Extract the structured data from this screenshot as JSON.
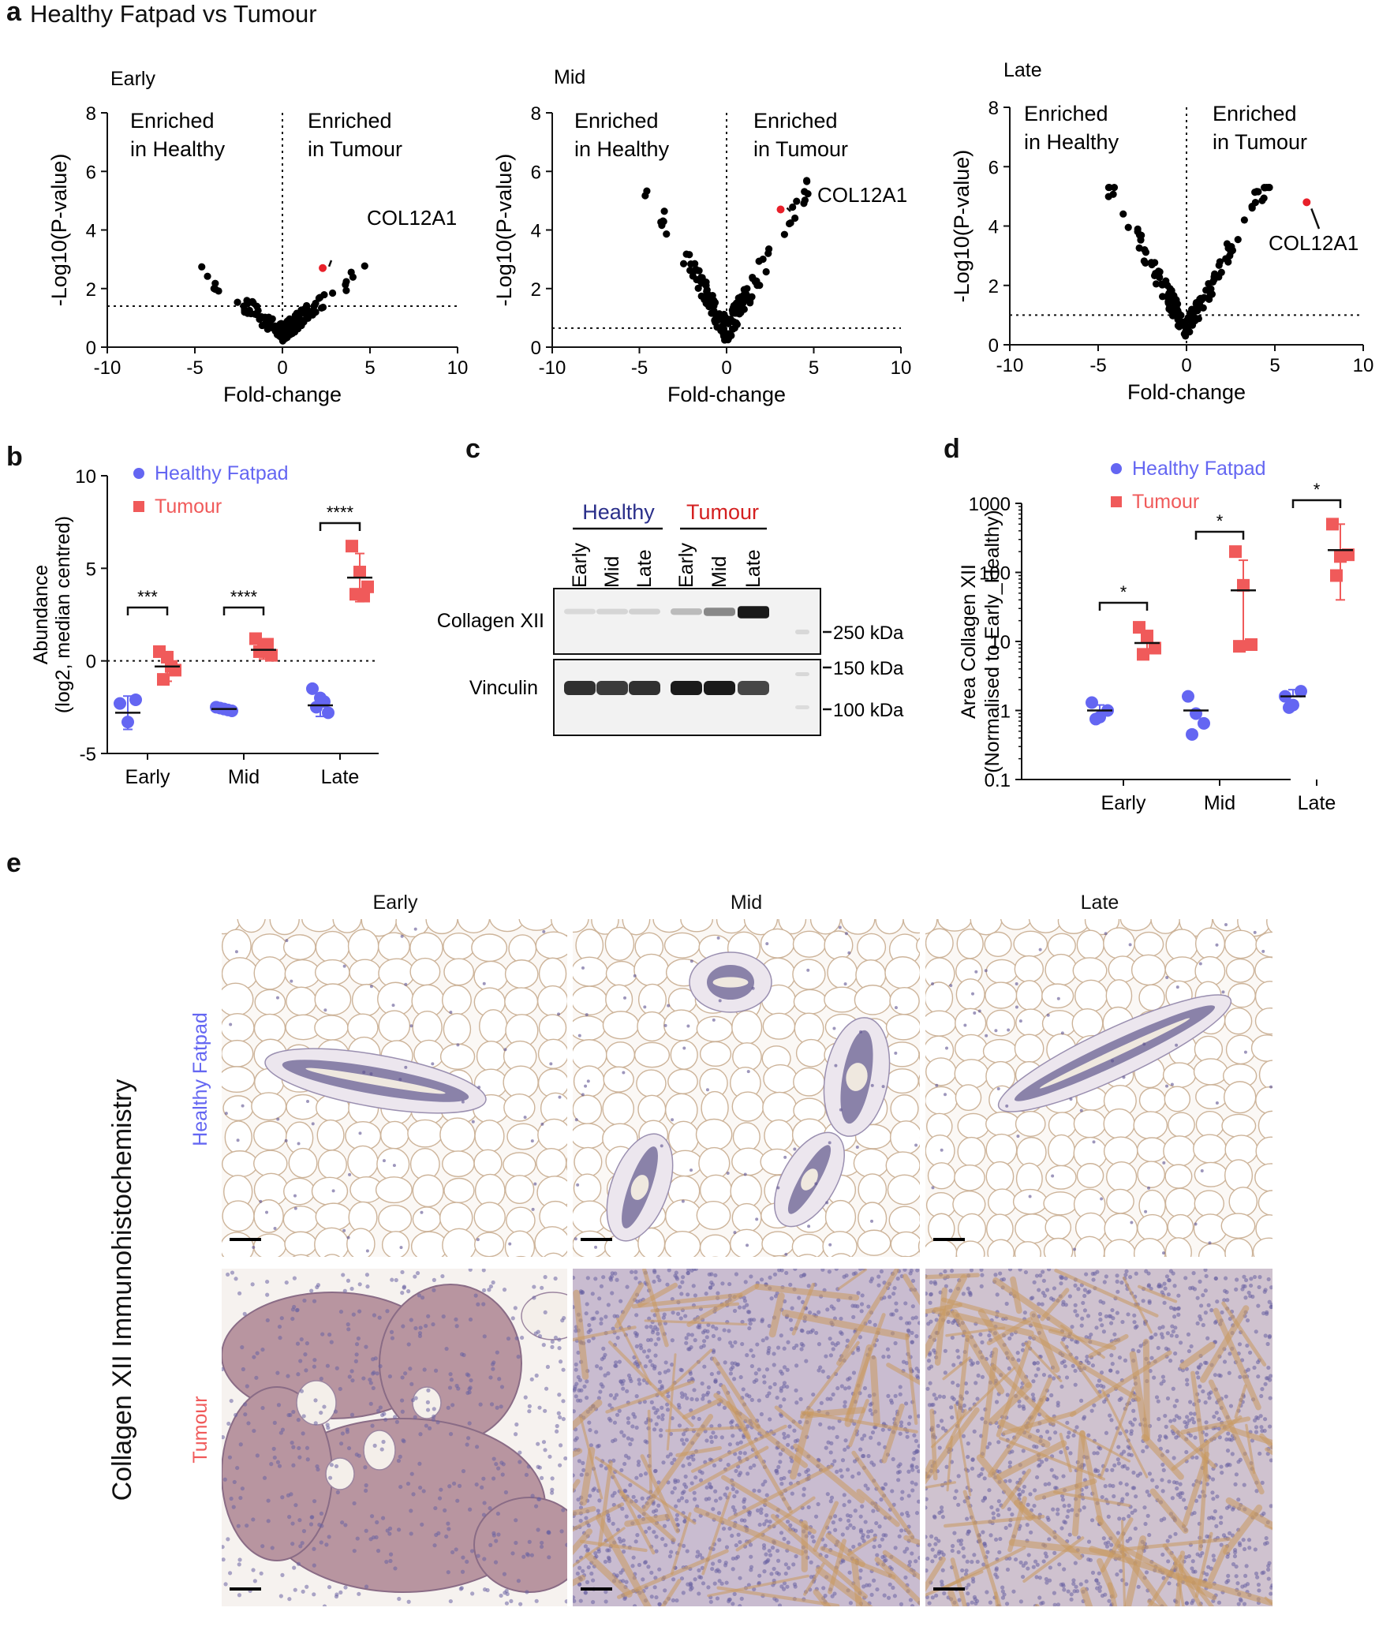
{
  "figure": {
    "panel_a_letter": "a",
    "panel_a_title": "Healthy Fatpad vs Tumour",
    "panel_b_letter": "b",
    "panel_c_letter": "c",
    "panel_d_letter": "d",
    "panel_e_letter": "e"
  },
  "colors": {
    "healthy": "#6466f2",
    "tumour": "#f05a5a",
    "highlight": "#e8202a",
    "healthy_label_c": "#2a2f8a",
    "tumour_label_c": "#d42020",
    "adipose_bg": "#fbf8f5",
    "tumour_tissue": "#c8a3a8",
    "stroma": "#c99a60"
  },
  "panel_a": {
    "ylabel": "-Log10(P-value)",
    "xlabel": "Fold-change",
    "left_annotation": [
      "Enriched",
      "in Healthy"
    ],
    "right_annotation": [
      "Enriched",
      "in Tumour"
    ],
    "highlight_gene": "COL12A1",
    "xlim": [
      -10,
      10
    ],
    "ylim": [
      0,
      8
    ],
    "xticks": [
      "-10",
      "-5",
      "0",
      "5",
      "10"
    ],
    "yticks": [
      "0",
      "2",
      "4",
      "6",
      "8"
    ],
    "plots": [
      {
        "title": "Early",
        "threshold": 1.4,
        "highlight": {
          "x": 2.3,
          "y": 2.7
        }
      },
      {
        "title": "Mid",
        "threshold": 0.65,
        "highlight": {
          "x": 3.1,
          "y": 4.7
        }
      },
      {
        "title": "Late",
        "threshold": 1.0,
        "highlight": {
          "x": 6.8,
          "y": 4.8
        }
      }
    ]
  },
  "panel_b": {
    "ylabel_line1": "Abundance",
    "ylabel_line2": "(log2, median centred)",
    "categories": [
      "Early",
      "Mid",
      "Late"
    ],
    "yticks": [
      "-5",
      "0",
      "5",
      "10"
    ],
    "ylim": [
      -5,
      10
    ],
    "legend": {
      "healthy": "Healthy Fatpad",
      "tumour": "Tumour"
    },
    "significance": [
      "***",
      "****",
      "****"
    ],
    "healthy": {
      "mean": [
        -2.8,
        -2.6,
        -2.4
      ],
      "sd": [
        0.9,
        0.15,
        0.6
      ],
      "points": [
        [
          -2.3,
          -3.3,
          -2.1
        ],
        [
          -2.5,
          -2.6,
          -2.7,
          -2.55,
          -2.65
        ],
        [
          -1.5,
          -2.0,
          -2.8,
          -2.5,
          -2.2
        ]
      ]
    },
    "tumour": {
      "mean": [
        -0.3,
        0.6,
        4.5
      ],
      "sd": [
        0.8,
        0.5,
        1.3
      ],
      "points": [
        [
          0.5,
          0.2,
          -0.5,
          -1.0,
          -0.3
        ],
        [
          1.2,
          0.7,
          0.3,
          0.5,
          0.9
        ],
        [
          6.2,
          4.8,
          4.0,
          3.6,
          3.5
        ]
      ]
    }
  },
  "panel_c": {
    "group_healthy": "Healthy",
    "group_tumour": "Tumour",
    "lanes": [
      "Early",
      "Mid",
      "Late",
      "Early",
      "Mid",
      "Late"
    ],
    "row1_label": "Collagen XII",
    "row2_label": "Vinculin",
    "marker_250": "250 kDa",
    "marker_150": "150 kDa",
    "marker_100": "100 kDa",
    "collagen_intensity": [
      0.08,
      0.1,
      0.12,
      0.22,
      0.45,
      0.95
    ],
    "vinculin_intensity": [
      0.85,
      0.8,
      0.85,
      0.95,
      0.95,
      0.75
    ]
  },
  "panel_d": {
    "ylabel_line1": "Area Collagen XII",
    "ylabel_line2": "(Normalised to Early_Healthy)",
    "categories": [
      "Early",
      "Mid",
      "Late"
    ],
    "yticks": [
      "0.1",
      "1",
      "10",
      "100",
      "1000"
    ],
    "ylim": [
      0.1,
      1000
    ],
    "scale": "log",
    "legend": {
      "healthy": "Healthy Fatpad",
      "tumour": "Tumour"
    },
    "significance": [
      "*",
      "*",
      "*"
    ],
    "healthy": {
      "mean": [
        1.0,
        1.0,
        1.6
      ],
      "sd_high": [
        1.2,
        1.0,
        2.0
      ],
      "points": [
        [
          1.3,
          0.8,
          1.0,
          0.75
        ],
        [
          1.6,
          0.9,
          0.65,
          0.45
        ],
        [
          1.6,
          1.2,
          1.9,
          1.1
        ]
      ]
    },
    "tumour": {
      "mean": [
        9.5,
        55,
        210
      ],
      "sd_high": [
        12,
        150,
        500
      ],
      "sd_low": [
        7,
        10,
        40
      ],
      "points": [
        [
          16,
          12,
          8,
          6.5
        ],
        [
          200,
          65,
          9,
          8.5
        ],
        [
          500,
          170,
          180,
          90
        ]
      ]
    }
  },
  "panel_e": {
    "columns": [
      "Early",
      "Mid",
      "Late"
    ],
    "row_healthy": "Healthy Fatpad",
    "row_tumour": "Tumour",
    "side_title": "Collagen XII Immunohistochemistry"
  }
}
